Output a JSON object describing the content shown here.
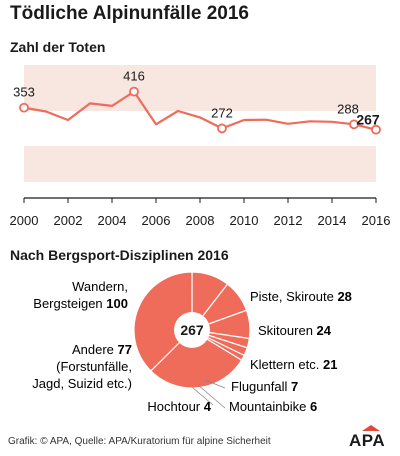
{
  "title": "Tödliche Alpinunfälle 2016",
  "line_section_title": "Zahl der Toten",
  "pie_section_title": "Nach Bergsport-Disziplinen 2016",
  "footer": "Grafik: © APA, Quelle: APA/Kuratorium für alpine Sicherheit",
  "logo": "APA",
  "colors": {
    "accent": "#ef6b5a",
    "band": "#f8e6e1",
    "text": "#1a1a1a"
  },
  "chart_data": [
    {
      "type": "line",
      "title": "Zahl der Toten",
      "x": [
        2000,
        2001,
        2002,
        2003,
        2004,
        2005,
        2006,
        2007,
        2008,
        2009,
        2010,
        2011,
        2012,
        2013,
        2014,
        2015,
        2016
      ],
      "series": [
        {
          "values": [
            353,
            338,
            305,
            370,
            360,
            416,
            288,
            340,
            315,
            272,
            305,
            306,
            290,
            300,
            298,
            288,
            267
          ]
        }
      ],
      "x_ticks": [
        "2000",
        "2002",
        "2004",
        "2006",
        "2008",
        "2010",
        "2012",
        "2014",
        "2016"
      ],
      "labeled_points": [
        {
          "year": 2000,
          "value": "353"
        },
        {
          "year": 2005,
          "value": "416"
        },
        {
          "year": 2009,
          "value": "272"
        },
        {
          "year": 2015,
          "value": "288"
        },
        {
          "year": 2016,
          "value": "267"
        }
      ],
      "xlim": [
        2000,
        2016
      ],
      "ylim": [
        0,
        520
      ],
      "grid": true
    },
    {
      "type": "pie",
      "title": "Nach Bergsport-Disziplinen 2016",
      "total": "267",
      "slices": [
        {
          "name": "Piste, Skiroute",
          "value": 28
        },
        {
          "name": "Skitouren",
          "value": 24
        },
        {
          "name": "Klettern etc.",
          "value": 21
        },
        {
          "name": "Flugunfall",
          "value": 7
        },
        {
          "name": "Mountainbike",
          "value": 6
        },
        {
          "name": "Hochtour",
          "value": 4
        },
        {
          "name": "Andere (Forstunfälle, Jagd, Suizid etc.)",
          "value": 77
        },
        {
          "name": "Wandern, Bergsteigen",
          "value": 100
        }
      ]
    }
  ],
  "pie_labels": {
    "wandern_line1": "Wandern,",
    "wandern_line2": "Bergsteigen",
    "wandern_value": "100",
    "piste": "Piste, Skiroute",
    "piste_value": "28",
    "skitouren": "Skitouren",
    "skitouren_value": "24",
    "klettern": "Klettern etc.",
    "klettern_value": "21",
    "andere": "Andere",
    "andere_value": "77",
    "andere_line2": "(Forstunfälle,",
    "andere_line3": "Jagd, Suizid etc.)",
    "flugunfall": "Flugunfall",
    "flugunfall_value": "7",
    "mountainbike": "Mountainbike",
    "mountainbike_value": "6",
    "hochtour": "Hochtour",
    "hochtour_value": "4"
  }
}
